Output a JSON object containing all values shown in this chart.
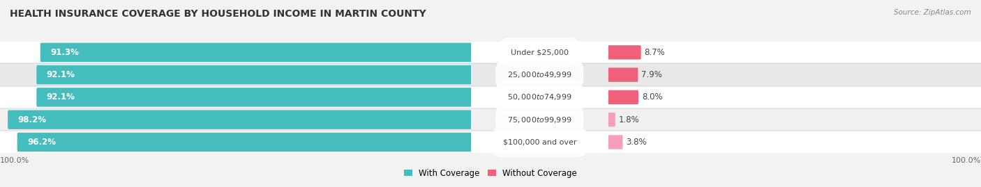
{
  "title": "HEALTH INSURANCE COVERAGE BY HOUSEHOLD INCOME IN MARTIN COUNTY",
  "source": "Source: ZipAtlas.com",
  "categories": [
    "Under $25,000",
    "$25,000 to $49,999",
    "$50,000 to $74,999",
    "$75,000 to $99,999",
    "$100,000 and over"
  ],
  "with_coverage": [
    91.3,
    92.1,
    92.1,
    98.2,
    96.2
  ],
  "without_coverage": [
    8.7,
    7.9,
    8.0,
    1.8,
    3.8
  ],
  "color_with": "#45bcbe",
  "color_without_dark": "#f0607a",
  "color_without_light": "#f5a0b8",
  "row_colors": [
    "#f5f5f5",
    "#ebebeb",
    "#f5f5f5",
    "#e0e0e0",
    "#f5f5f5"
  ],
  "bg_color": "#f2f2f2",
  "title_fontsize": 10,
  "label_fontsize": 8.5,
  "tick_fontsize": 8,
  "source_fontsize": 7.5,
  "legend_fontsize": 8.5
}
